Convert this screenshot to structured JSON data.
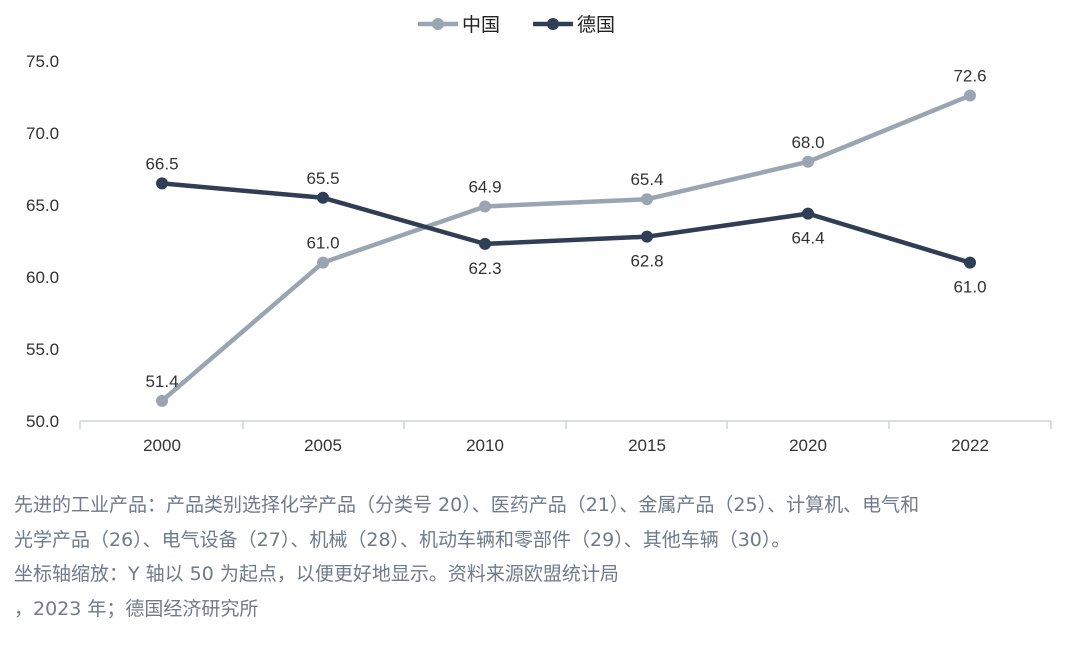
{
  "chart_data": {
    "type": "line",
    "categories": [
      "2000",
      "2005",
      "2010",
      "2015",
      "2020",
      "2022"
    ],
    "series": [
      {
        "name": "中国",
        "color": "#9aa5b4",
        "values": [
          51.4,
          61.0,
          64.9,
          65.4,
          68.0,
          72.6
        ]
      },
      {
        "name": "德国",
        "color": "#2f3e55",
        "values": [
          66.5,
          65.5,
          62.3,
          62.8,
          64.4,
          61.0
        ]
      }
    ],
    "ylim": [
      50.0,
      75.0
    ],
    "yticks": [
      "50.0",
      "55.0",
      "60.0",
      "65.0",
      "70.0",
      "75.0"
    ],
    "legend_position": "top-center",
    "grid": false
  },
  "notes": {
    "line1": "先进的工业产品：产品类别选择化学产品（分类号 20）、医药产品（21）、金属产品（25）、计算机、电气和",
    "line2": "光学产品（26）、电气设备（27）、机械（28）、机动车辆和零部件（29）、其他车辆（30）。",
    "line3": "坐标轴缩放：Y 轴以 50 为起点，以便更好地显示。资料来源欧盟统计局",
    "line4": "，2023 年；德国经济研究所"
  }
}
